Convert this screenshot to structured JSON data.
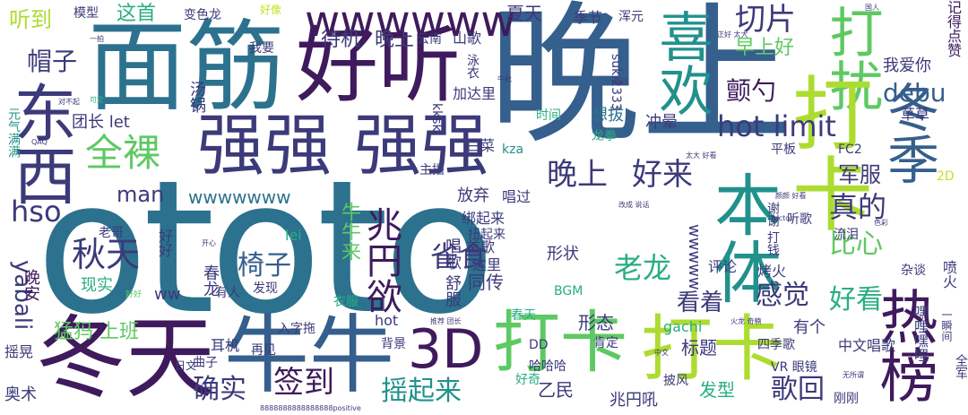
{
  "palette": {
    "dark_purple": "#3f1a5c",
    "indigo": "#3b3a7a",
    "slate_blue": "#355f8d",
    "teal_blue": "#2c728e",
    "teal": "#21918c",
    "green_teal": "#28ae80",
    "green": "#5ec962",
    "lime": "#addc30",
    "yellow_green": "#c8e020"
  },
  "words": {
    "ototo": "ototo",
    "wan_shang_big": "晚上",
    "mian_jin": "面筋",
    "hao_ting": "好听",
    "qiang_qiang_1": "强强",
    "qiang_qiang_2": "强强",
    "wwwwww": "wwwwww",
    "da_rao": "打扰",
    "xi_huan": "喜欢",
    "dong_xi": "东西",
    "quan_luo": "全裸",
    "dong_tian": "冬天",
    "niu_niu": "牛牛",
    "da_ka_1": "打卡",
    "da_ka_2": "打卡",
    "da_ka_v": "打卡",
    "ben_ti": "本体",
    "dong_ji": "冬季",
    "re_bang": "热榜",
    "three_d": "3D",
    "hot_limit": "hot limit",
    "debu": "debu",
    "chan_shao": "颤勺",
    "qie_pian": "切片",
    "zao_shang_hao": "早上好",
    "wan_shang_2": "晚上",
    "hao_lai": "好来",
    "zhao_yuan_yu": "兆円欲",
    "qiu_tian": "秋天",
    "yi_zi": "椅子",
    "que_shi": "雀食",
    "lao_long": "老龙",
    "gan_jue": "感觉",
    "hao_kan": "好看",
    "kan_zhe": "看着",
    "que_shi_2": "确实",
    "qian_dao": "签到",
    "yao_qi_lai": "摇起来",
    "ge_hui": "歌回",
    "zhen_de": "真的",
    "bi_xin": "比心",
    "jun_fu": "军服",
    "hso": "hso",
    "yabali": "yabali",
    "man": "man",
    "wwwwwww_small": "wwwwwww",
    "wwwww_v": "wwwww",
    "meng_ma_shang_ban": "猛犸 上班",
    "wan_an": "晚安",
    "ting_dao": "听到",
    "mao_zi": "帽子",
    "zhe_ge": "这首",
    "moxing": "模型",
    "bian_se_long": "变色龙",
    "xia_tian": "夏天",
    "ji_jie": "季节",
    "hun_yuan": "浑元",
    "dai_ji": "待机",
    "wan_shang_3": "晚上",
    "yun_nan": "云南",
    "shan_ge": "山歌",
    "wo_ai_ni": "我爱你",
    "tang_guo": "汤锅",
    "tuan_zhang": "团长 let",
    "yuan_qi_man_man": "元气满满",
    "yong_yi": "泳衣",
    "jia_da_li": "加达里",
    "suki": "suki2333",
    "kksk": "kksk",
    "xiang_ba": "想拔",
    "chong_yun": "冲晕",
    "long_quan": "龙拳",
    "shi_jian": "时间",
    "cao_cao": "草草",
    "ping_ban": "平板",
    "bai_cai": "白菜",
    "zhu_bo": "主播",
    "kza": "kza",
    "fc2": "FC2",
    "fang_qi": "放弃",
    "bang_qi_lai": "绑起来",
    "chang_guo": "唱过",
    "niu_niu_lai": "牛牛来",
    "lei": "lei",
    "lao_ge": "老哥",
    "hao_hao": "好好",
    "xian_shi": "现实",
    "ww": "ww",
    "chun_long": "春龙",
    "niu_ba": "扭起来",
    "shou_ge": "首歌",
    "da_li": "达里",
    "chang_ge_shu_fu": "唱歌 舒服",
    "tong_chuan": "同传",
    "xing_zhuang": "形状",
    "ping_lun": "评论",
    "kao_huo": "烤火",
    "pen_huo": "喷火",
    "za_tan": "杂谈",
    "liu_lei": "流泪",
    "ting_ge": "听歌",
    "xie_xie_da_qian": "谢谢 打钱",
    "you_ren": "有人",
    "fa_xian": "发现",
    "yi_fu": "衣服",
    "hot": "hot",
    "ru_zi_tuo": "入字拖",
    "er_ji": "耳机",
    "zai_jian": "再见",
    "bei_jing": "背景",
    "chun_tian": "春天",
    "xing_tai": "形态",
    "you_ge": "有个",
    "bgm": "BGM",
    "gachi": "gachi",
    "dd": "DD",
    "ken_ding": "肯定",
    "biao_ti": "标题",
    "si_ji_fu": "四季歌",
    "zhong_wen_chang_ge": "中文唱歌",
    "hei_li_hei_li": "嘿哩嘿哩",
    "yao_huang": "摇晃",
    "qu_zi": "曲子",
    "ri_wen": "日文",
    "ao_shu": "奥术",
    "ha_ha_ha": "哈哈哈",
    "yi_min": "乙民",
    "zhao_yuan_hou": "兆円吼",
    "fa_xing": "发型",
    "pi_feng": "披风",
    "vr_yan_jing": "VR 眼镜",
    "gang_gang": "刚刚",
    "quan_jun": "全军",
    "yi_lian": "一瞬间",
    "hao_qi": "好奇",
    "two_d": "2D",
    "wo_yao": "我要",
    "hao_xiang": "好像",
    "ji_de_dian_zan": "记得点赞",
    "small_1": "好好",
    "small_2": "Factos",
    "small_3": "无所谓",
    "small_4": "8888888888888888positive",
    "small_5": "太大 好看",
    "small_6": "中文",
    "small_7": "推荐 团长",
    "small_8": "改成 说话",
    "small_9": "可爱",
    "small_10": "色彩",
    "small_11": "QAQ",
    "small_12": "对不起",
    "small_13": "牛批",
    "small_14": "火龙 奇楠",
    "small_15": "颜颜 好看",
    "small_16": "正好 太大",
    "small_17": "开心",
    "small_18": "每日",
    "small_19": "一拍",
    "small_20": "国人"
  }
}
